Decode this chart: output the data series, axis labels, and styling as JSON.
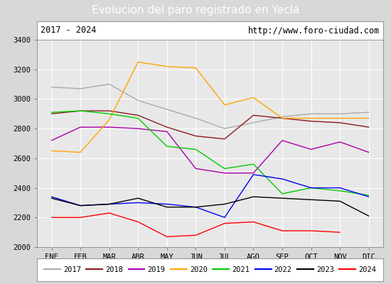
{
  "title": "Evolucion del paro registrado en Yecla",
  "subtitle_left": "2017 - 2024",
  "subtitle_right": "http://www.foro-ciudad.com",
  "ylim": [
    2000,
    3400
  ],
  "months": [
    "ENE",
    "FEB",
    "MAR",
    "ABR",
    "MAY",
    "JUN",
    "JUL",
    "AGO",
    "SEP",
    "OCT",
    "NOV",
    "DIC"
  ],
  "series": {
    "2017": [
      3080,
      3070,
      3100,
      2990,
      2930,
      2870,
      2800,
      2840,
      2880,
      2900,
      2900,
      2910
    ],
    "2018": [
      2900,
      2920,
      2920,
      2890,
      2810,
      2750,
      2730,
      2890,
      2870,
      2850,
      2840,
      2810
    ],
    "2019": [
      2720,
      2810,
      2810,
      2800,
      2780,
      2530,
      2500,
      2500,
      2720,
      2660,
      2710,
      2640
    ],
    "2020": [
      2650,
      2640,
      2860,
      3250,
      3220,
      3210,
      2960,
      3010,
      2870,
      2870,
      2870,
      2870
    ],
    "2021": [
      2910,
      2920,
      2900,
      2870,
      2680,
      2660,
      2530,
      2560,
      2360,
      2400,
      2380,
      2350
    ],
    "2022": [
      2340,
      2280,
      2290,
      2300,
      2290,
      2270,
      2200,
      2490,
      2460,
      2400,
      2400,
      2340
    ],
    "2023": [
      2330,
      2280,
      2290,
      2330,
      2270,
      2270,
      2290,
      2340,
      2330,
      2320,
      2310,
      2210
    ],
    "2024": [
      2200,
      2200,
      2230,
      2170,
      2070,
      2080,
      2160,
      2170,
      2110,
      2110,
      2100,
      null
    ]
  },
  "colors": {
    "2017": "#aaaaaa",
    "2018": "#8B1a1a",
    "2019": "#aa00aa",
    "2020": "#FFA500",
    "2021": "#00cc00",
    "2022": "#0000ee",
    "2023": "#000000",
    "2024": "#ff0000"
  },
  "title_bg": "#4d7ebf",
  "title_fg": "#ffffff",
  "outer_bg": "#d8d8d8",
  "plot_bg": "#e8e8e8",
  "subtitle_bg": "#ffffff",
  "grid_color": "#ffffff",
  "legend_years": [
    "2017",
    "2018",
    "2019",
    "2020",
    "2021",
    "2022",
    "2023",
    "2024"
  ]
}
